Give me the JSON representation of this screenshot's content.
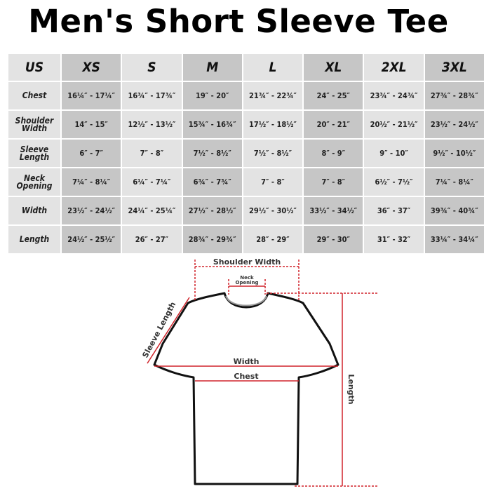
{
  "title": "Men's Short Sleeve Tee",
  "table": {
    "headers": [
      "US",
      "XS",
      "S",
      "M",
      "L",
      "XL",
      "2XL",
      "3XL"
    ],
    "rows": [
      {
        "label": "Chest",
        "values": [
          "16¼″ - 17¼″",
          "16¾″ - 17¾″",
          "19″ - 20″",
          "21¾″ - 22¾″",
          "24″ - 25″",
          "23¾″ - 24¾″",
          "27¾″ - 28¾″"
        ]
      },
      {
        "label": "Shoulder Width",
        "values": [
          "14″ - 15″",
          "12½″ - 13½″",
          "15¾″ - 16¾″",
          "17½″ - 18½″",
          "20″ - 21″",
          "20½″ - 21½″",
          "23½″ - 24½″"
        ]
      },
      {
        "label": "Sleeve Length",
        "values": [
          "6″ - 7″",
          "7″ - 8″",
          "7½″ - 8½″",
          "7½″ - 8½″",
          "8″ - 9″",
          "9″ - 10″",
          "9½″ - 10½″"
        ]
      },
      {
        "label": "Neck Opening",
        "values": [
          "7¼″ - 8¼″",
          "6¼″ - 7¼″",
          "6¾″ - 7¾″",
          "7″ - 8″",
          "7″ - 8″",
          "6½″ - 7½″",
          "7¼″ - 8¼″"
        ]
      },
      {
        "label": "Width",
        "values": [
          "23½″ - 24½″",
          "24¼″ - 25¼″",
          "27½″ - 28½″",
          "29½″ - 30½″",
          "33½″ - 34½″",
          "36″ - 37″",
          "39¾″ - 40¾″"
        ]
      },
      {
        "label": "Length",
        "values": [
          "24½″ - 25½″",
          "26″ - 27″",
          "28¾″ - 29¾″",
          "28″ - 29″",
          "29″ - 30″",
          "31″ - 32″",
          "33¼″ - 34¼″"
        ]
      }
    ]
  },
  "diagram": {
    "shoulder_width": "Shoulder Width",
    "neck_opening_1": "Neck",
    "neck_opening_2": "Opening",
    "sleeve_length": "Sleeve Length",
    "width": "Width",
    "chest": "Chest",
    "length": "Length",
    "line_color": "#d0242b"
  }
}
